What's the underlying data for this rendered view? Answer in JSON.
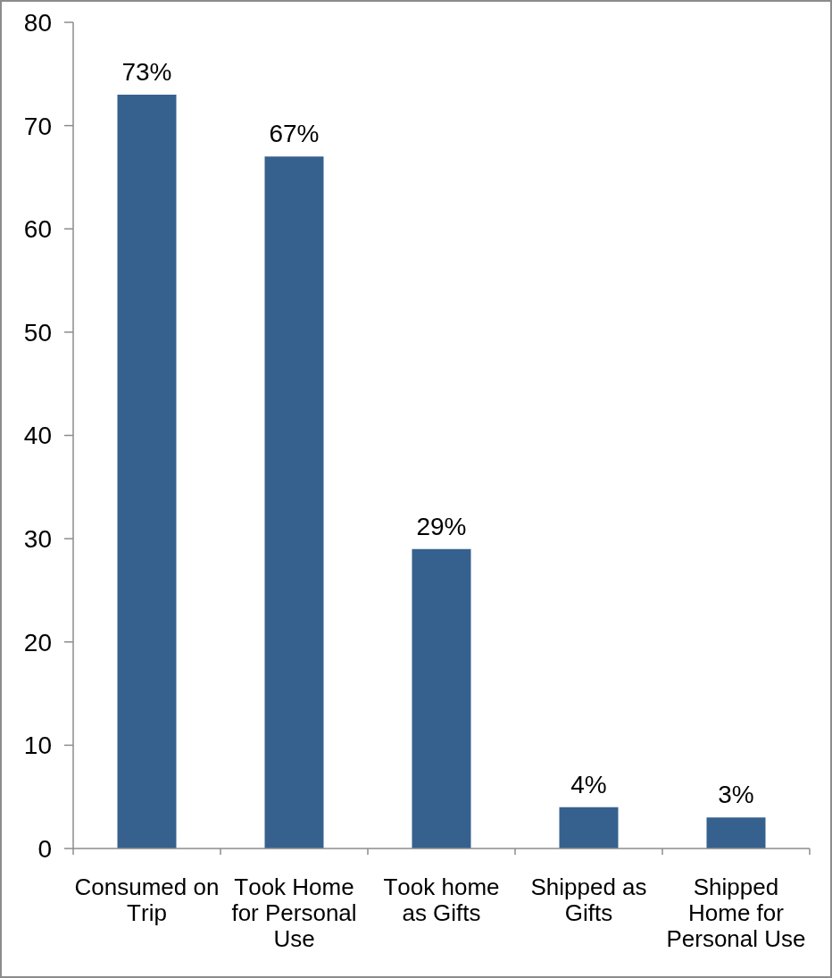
{
  "chart_data": {
    "type": "bar",
    "categories": [
      "Consumed on Trip",
      "Took Home for Personal Use",
      "Took home as Gifts",
      "Shipped as Gifts",
      "Shipped Home for Personal Use"
    ],
    "values": [
      73,
      67,
      29,
      4,
      3
    ],
    "color": "#36618e",
    "value_labels": [
      "73%",
      "67%",
      "29%",
      "4%",
      "3%"
    ],
    "ylim": [
      0,
      80
    ],
    "yticks": [
      0,
      10,
      20,
      30,
      40,
      50,
      60,
      70,
      80
    ]
  }
}
